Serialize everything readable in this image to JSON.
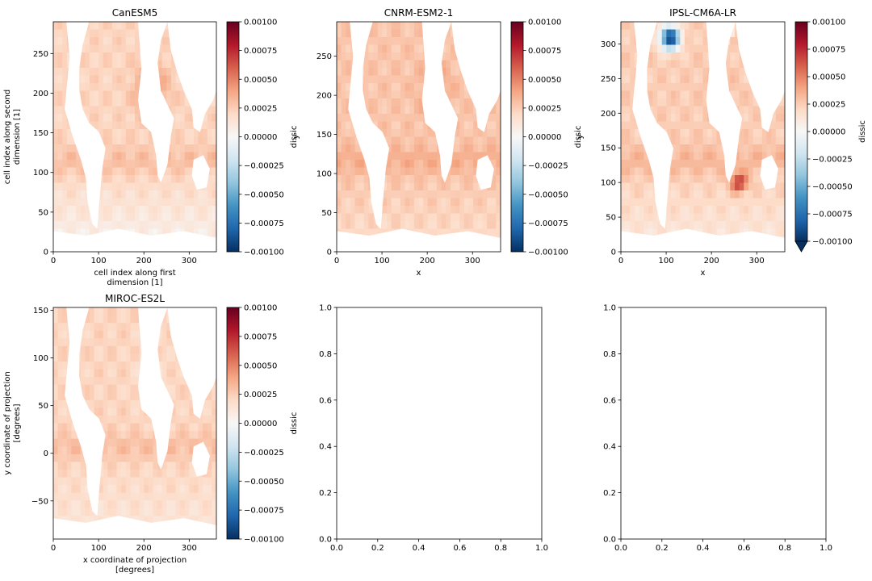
{
  "colormap": {
    "name": "RdBu_r",
    "stops": [
      "#053061",
      "#2166ac",
      "#4393c3",
      "#92c5de",
      "#d1e5f0",
      "#f7f7f7",
      "#fddbc7",
      "#f4a582",
      "#d6604d",
      "#b2182b",
      "#67001f"
    ]
  },
  "chart_data": [
    {
      "type": "heatmap",
      "title": "CanESM5",
      "xlabel": "cell index along first\ndimension [1]",
      "ylabel": "cell index along second\ndimension [1]",
      "xlim": [
        0,
        360
      ],
      "ylim": [
        0,
        290
      ],
      "xticks": [
        "0",
        "100",
        "200",
        "300"
      ],
      "yticks": [
        "0",
        "50",
        "100",
        "150",
        "200",
        "250"
      ],
      "colorbar": {
        "label": "dissic",
        "range": [
          -0.001,
          0.001
        ],
        "ticks": [
          "0.00100",
          "0.00075",
          "0.00050",
          "0.00025",
          "0.00000",
          "−0.00025",
          "−0.00050",
          "−0.00075",
          "−0.00100"
        ],
        "extend_min": false
      },
      "field_style": {
        "base_anomaly": 0.00022,
        "south_anomaly": 3e-05,
        "north_atlantic_anomaly": 0.00045,
        "arctic_blue": false,
        "hotspot_anomaly": 0.0
      }
    },
    {
      "type": "heatmap",
      "title": "CNRM-ESM2-1",
      "xlabel": "x",
      "ylabel": "y",
      "xlim": [
        0,
        362
      ],
      "ylim": [
        0,
        294
      ],
      "xticks": [
        "0",
        "100",
        "200",
        "300"
      ],
      "yticks": [
        "0",
        "50",
        "100",
        "150",
        "200",
        "250"
      ],
      "colorbar": {
        "label": "dissic",
        "range": [
          -0.001,
          0.001
        ],
        "ticks": [
          "0.00100",
          "0.00075",
          "0.00050",
          "0.00025",
          "0.00000",
          "−0.00025",
          "−0.00050",
          "−0.00075",
          "−0.00100"
        ],
        "extend_min": false
      },
      "field_style": {
        "base_anomaly": 0.00028,
        "south_anomaly": 0.00018,
        "north_atlantic_anomaly": 0.0004,
        "arctic_blue": false,
        "hotspot_anomaly": 0.0
      }
    },
    {
      "type": "heatmap",
      "title": "IPSL-CM6A-LR",
      "xlabel": "x",
      "ylabel": "y",
      "xlim": [
        0,
        362
      ],
      "ylim": [
        0,
        332
      ],
      "xticks": [
        "0",
        "100",
        "200",
        "300"
      ],
      "yticks": [
        "0",
        "50",
        "100",
        "150",
        "200",
        "250",
        "300"
      ],
      "colorbar": {
        "label": "dissic",
        "range": [
          -0.001,
          0.001
        ],
        "ticks": [
          "0.00100",
          "0.00075",
          "0.00050",
          "0.00025",
          "0.00000",
          "−0.00025",
          "−0.00050",
          "−0.00075",
          "−0.00100"
        ],
        "extend_min": true
      },
      "field_style": {
        "base_anomaly": 0.00025,
        "south_anomaly": 0.0001,
        "north_atlantic_anomaly": 0.0003,
        "arctic_blue": true,
        "hotspot_anomaly": 0.00075
      }
    },
    {
      "type": "heatmap",
      "title": "MIROC-ES2L",
      "xlabel": "x coordinate of projection\n[degrees]",
      "ylabel": "y coordinate of projection\n[degrees]",
      "xlim": [
        0,
        360
      ],
      "ylim": [
        -90,
        153
      ],
      "xticks": [
        "0",
        "100",
        "200",
        "300"
      ],
      "yticks": [
        "−50",
        "0",
        "50",
        "100",
        "150"
      ],
      "colorbar": {
        "label": "dissic",
        "range": [
          -0.001,
          0.001
        ],
        "ticks": [
          "0.00100",
          "0.00075",
          "0.00050",
          "0.00025",
          "0.00000",
          "−0.00025",
          "−0.00050",
          "−0.00075",
          "−0.00100"
        ],
        "extend_min": false
      },
      "field_style": {
        "base_anomaly": 0.00022,
        "south_anomaly": 0.00012,
        "north_atlantic_anomaly": 0.00015,
        "arctic_blue": false,
        "hotspot_anomaly": 0.0
      }
    },
    {
      "type": "empty",
      "title": "",
      "xlim": [
        0,
        1
      ],
      "ylim": [
        0,
        1
      ],
      "xticks": [
        "0.0",
        "0.2",
        "0.4",
        "0.6",
        "0.8",
        "1.0"
      ],
      "yticks": [
        "0.0",
        "0.2",
        "0.4",
        "0.6",
        "0.8",
        "1.0"
      ]
    },
    {
      "type": "empty",
      "title": "",
      "xlim": [
        0,
        1
      ],
      "ylim": [
        0,
        1
      ],
      "xticks": [
        "0.0",
        "0.2",
        "0.4",
        "0.6",
        "0.8",
        "1.0"
      ],
      "yticks": [
        "0.0",
        "0.2",
        "0.4",
        "0.6",
        "0.8",
        "1.0"
      ]
    }
  ]
}
